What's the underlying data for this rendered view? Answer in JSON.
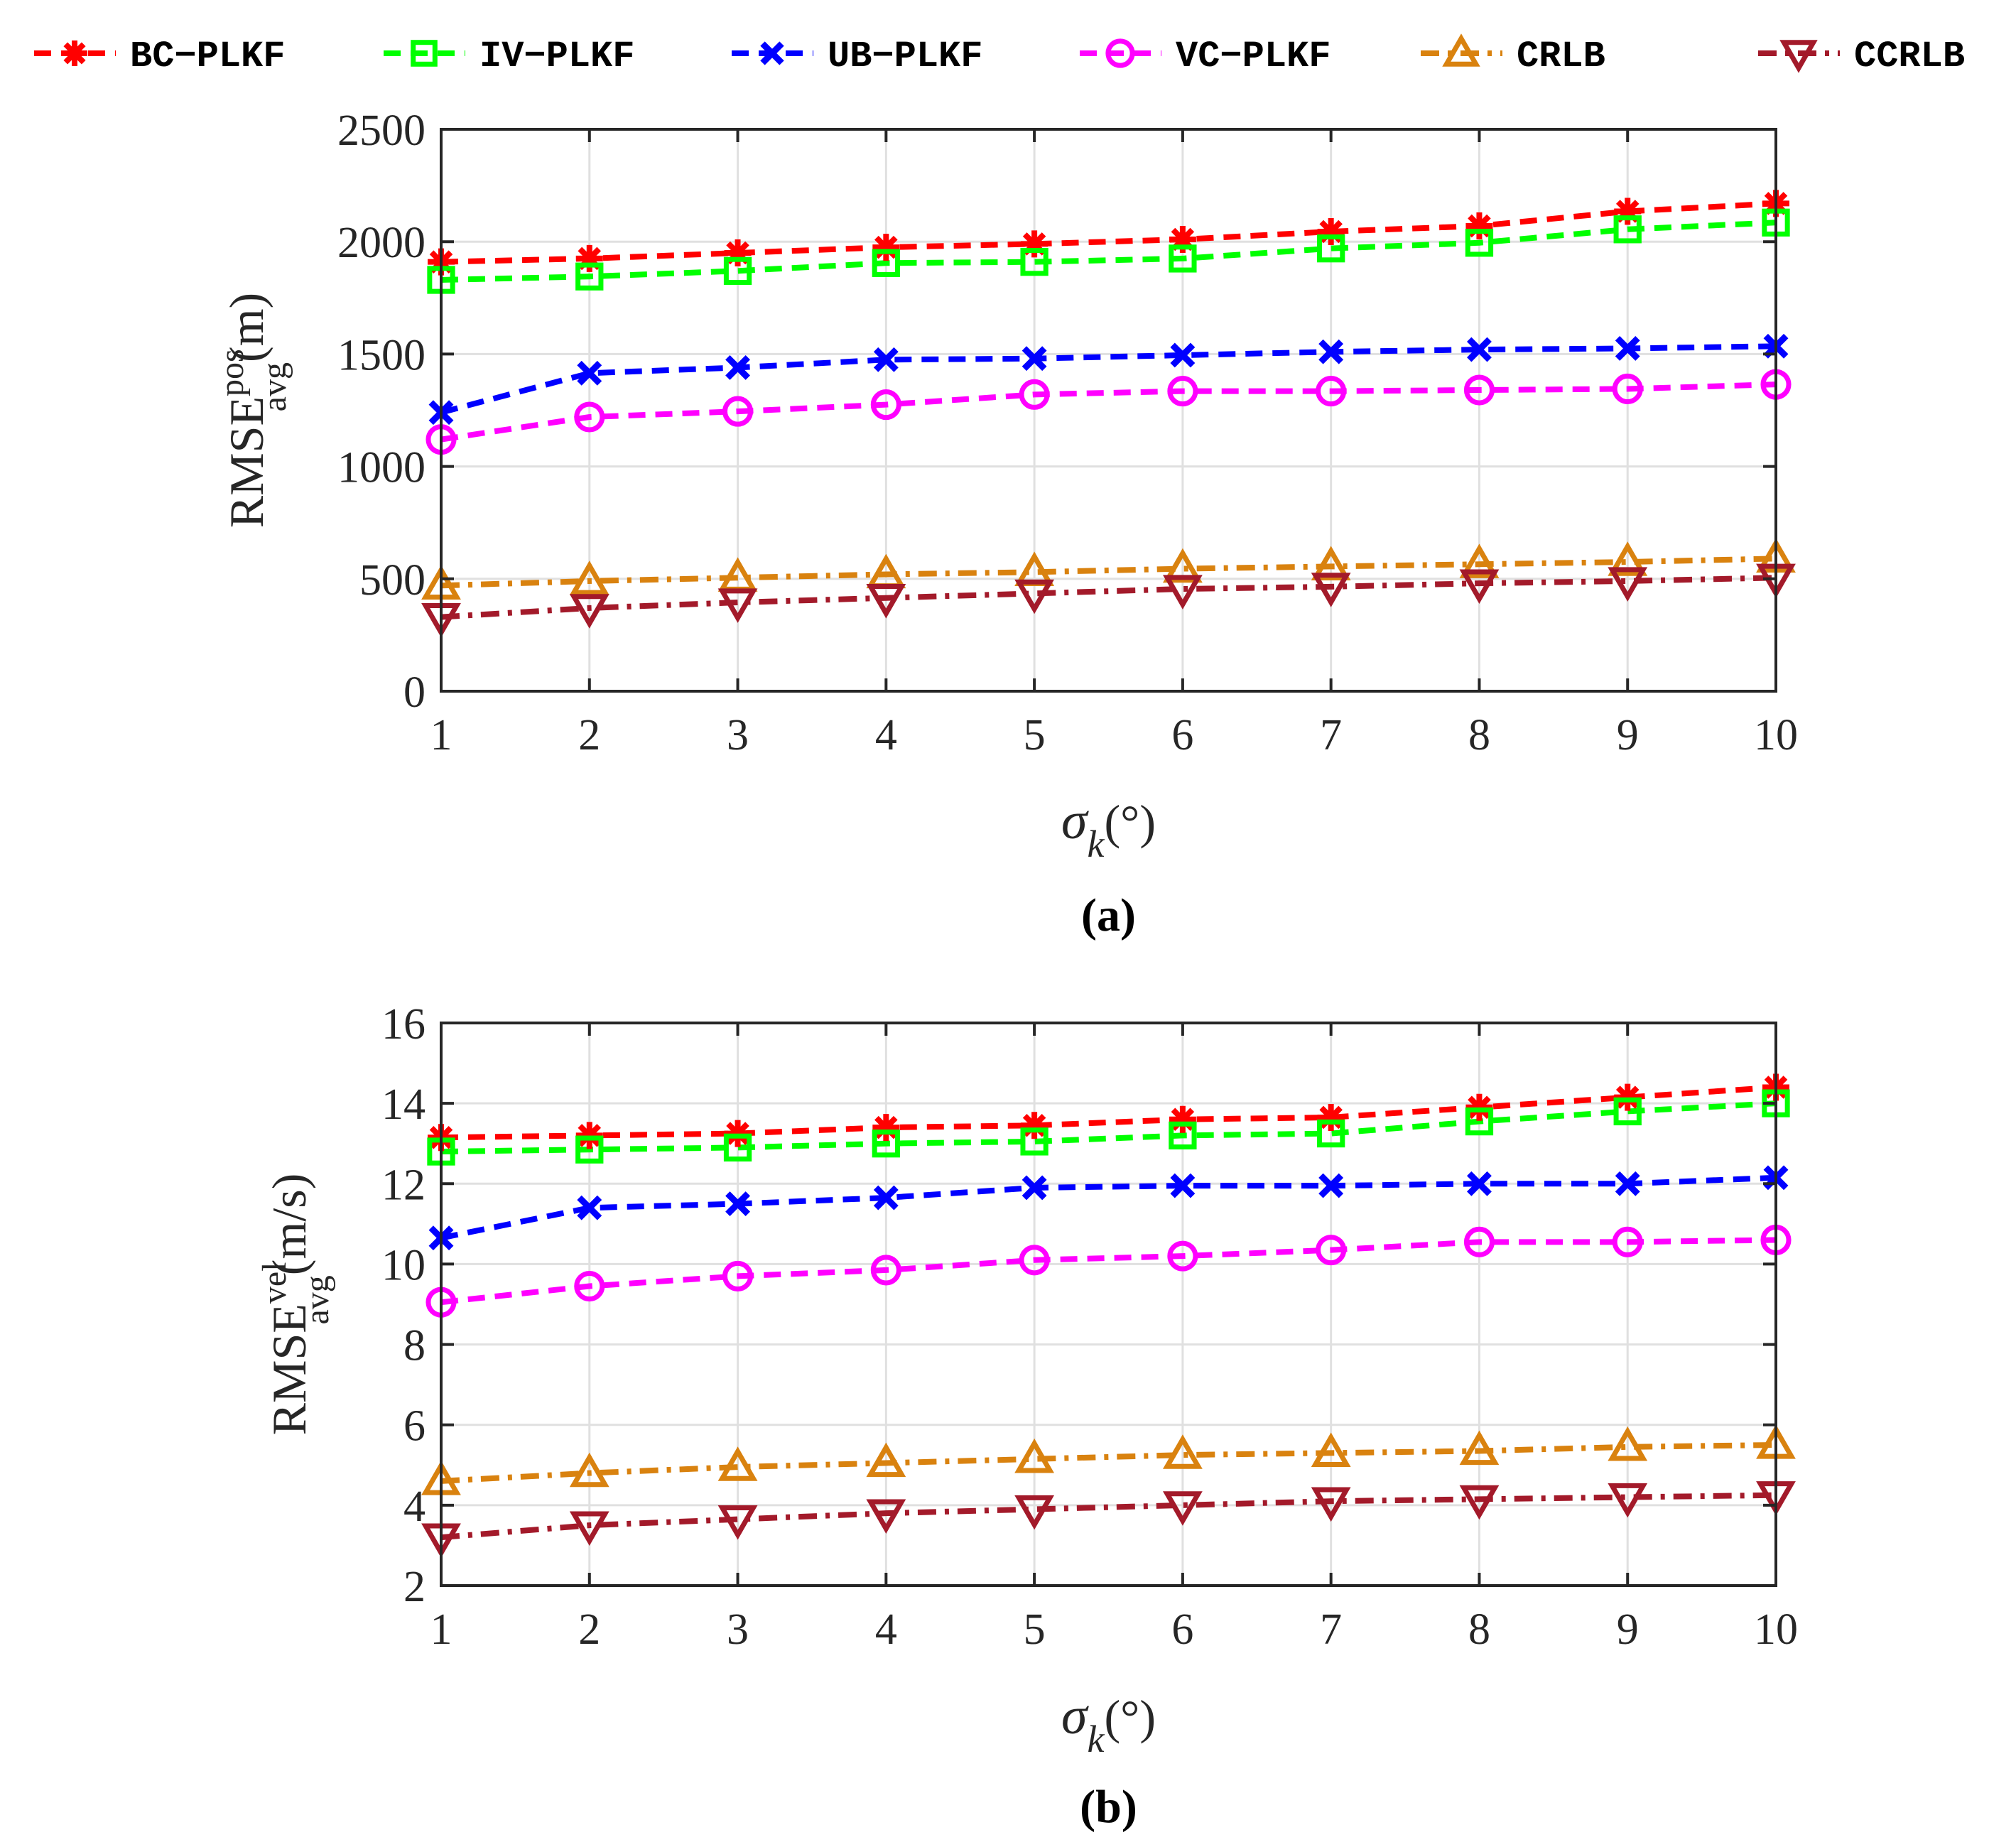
{
  "legend": [
    {
      "name": "BC−PLKF",
      "color": "#ff0000",
      "marker": "star-icon",
      "dash": "dashed"
    },
    {
      "name": "IV−PLKF",
      "color": "#00ff00",
      "marker": "square-icon",
      "dash": "dashed"
    },
    {
      "name": "UB−PLKF",
      "color": "#0000ff",
      "marker": "cross-icon",
      "dash": "dashed"
    },
    {
      "name": "VC−PLKF",
      "color": "#ff00ff",
      "marker": "circle-icon",
      "dash": "dashed"
    },
    {
      "name": "CRLB",
      "color": "#d9820f",
      "marker": "triangle-up-icon",
      "dash": "dashdot"
    },
    {
      "name": "CCRLB",
      "color": "#a31a2a",
      "marker": "triangle-down-icon",
      "dash": "dashdot"
    }
  ],
  "chart_data": [
    {
      "type": "line",
      "panel_label": "(a)",
      "ylabel_main": "RMSE",
      "ylabel_sup": "pos",
      "ylabel_sub": "avg",
      "ylabel_unit": "(m)",
      "xlabel_symbol": "σ",
      "xlabel_sub": "k",
      "xlabel_unit": "(°)",
      "xlim": [
        1,
        10
      ],
      "ylim": [
        0,
        2500
      ],
      "grid": true,
      "x": [
        1,
        2,
        3,
        4,
        5,
        6,
        7,
        8,
        9,
        10
      ],
      "xticks": [
        "1",
        "2",
        "3",
        "4",
        "5",
        "6",
        "7",
        "8",
        "9",
        "10"
      ],
      "yticks": [
        "0",
        "500",
        "1000",
        "1500",
        "2000",
        "2500"
      ],
      "ytick_values": [
        0,
        500,
        1000,
        1500,
        2000,
        2500
      ],
      "series": [
        {
          "name": "BC−PLKF",
          "values": [
            1910,
            1925,
            1950,
            1975,
            1990,
            2010,
            2045,
            2070,
            2135,
            2170
          ]
        },
        {
          "name": "IV−PLKF",
          "values": [
            1830,
            1845,
            1870,
            1905,
            1910,
            1925,
            1970,
            1995,
            2055,
            2085
          ]
        },
        {
          "name": "UB−PLKF",
          "values": [
            1240,
            1415,
            1440,
            1475,
            1480,
            1495,
            1510,
            1520,
            1525,
            1535
          ]
        },
        {
          "name": "VC−PLKF",
          "values": [
            1120,
            1220,
            1245,
            1275,
            1320,
            1335,
            1335,
            1340,
            1345,
            1365
          ]
        },
        {
          "name": "CRLB",
          "values": [
            470,
            490,
            505,
            520,
            530,
            545,
            555,
            565,
            575,
            590
          ]
        },
        {
          "name": "CCRLB",
          "values": [
            330,
            370,
            395,
            415,
            435,
            455,
            465,
            480,
            490,
            505
          ]
        }
      ]
    },
    {
      "type": "line",
      "panel_label": "(b)",
      "ylabel_main": "RMSE",
      "ylabel_sup": "vel",
      "ylabel_sub": "avg",
      "ylabel_unit": "(m/s)",
      "xlabel_symbol": "σ",
      "xlabel_sub": "k",
      "xlabel_unit": "(°)",
      "xlim": [
        1,
        10
      ],
      "ylim": [
        2,
        16
      ],
      "grid": true,
      "x": [
        1,
        2,
        3,
        4,
        5,
        6,
        7,
        8,
        9,
        10
      ],
      "xticks": [
        "1",
        "2",
        "3",
        "4",
        "5",
        "6",
        "7",
        "8",
        "9",
        "10"
      ],
      "yticks": [
        "2",
        "4",
        "6",
        "8",
        "10",
        "12",
        "14",
        "16"
      ],
      "ytick_values": [
        2,
        4,
        6,
        8,
        10,
        12,
        14,
        16
      ],
      "series": [
        {
          "name": "BC−PLKF",
          "values": [
            13.15,
            13.2,
            13.25,
            13.4,
            13.45,
            13.6,
            13.65,
            13.9,
            14.15,
            14.4
          ]
        },
        {
          "name": "IV−PLKF",
          "values": [
            12.8,
            12.85,
            12.9,
            13.0,
            13.05,
            13.2,
            13.25,
            13.55,
            13.8,
            14.0
          ]
        },
        {
          "name": "UB−PLKF",
          "values": [
            10.65,
            11.4,
            11.5,
            11.65,
            11.9,
            11.95,
            11.95,
            12.0,
            12.0,
            12.15
          ]
        },
        {
          "name": "VC−PLKF",
          "values": [
            9.05,
            9.45,
            9.7,
            9.85,
            10.1,
            10.2,
            10.35,
            10.55,
            10.55,
            10.6
          ]
        },
        {
          "name": "CRLB",
          "values": [
            4.6,
            4.8,
            4.95,
            5.05,
            5.15,
            5.25,
            5.3,
            5.35,
            5.45,
            5.5
          ]
        },
        {
          "name": "CCRLB",
          "values": [
            3.2,
            3.5,
            3.65,
            3.8,
            3.9,
            4.0,
            4.1,
            4.15,
            4.2,
            4.25
          ]
        }
      ]
    }
  ]
}
